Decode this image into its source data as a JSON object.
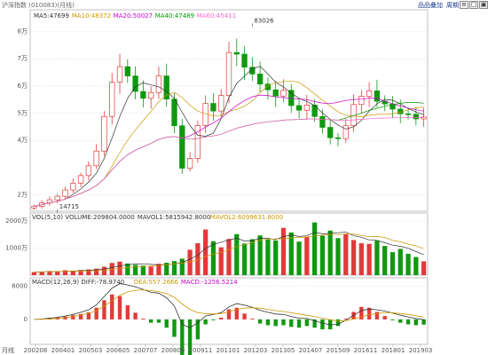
{
  "header": {
    "title": "沪深指数 (010083)(月线)",
    "btn_add": "品品叠加",
    "btn_cycle": "周期",
    "icon_a": "≡",
    "icon_b": "□",
    "icon_c": "▣"
  },
  "chart_data": [
    {
      "type": "candlestick",
      "panel": "price",
      "ma_legend": [
        {
          "label": "MA5:47699",
          "color": "#333333"
        },
        {
          "label": "MA10:48372",
          "color": "#cc9900"
        },
        {
          "label": "MA20:50027",
          "color": "#cc00cc"
        },
        {
          "label": "MA40:47489",
          "color": "#009900"
        },
        {
          "label": "MA60:45411",
          "color": "#ff66cc"
        }
      ],
      "ylim": [
        14000,
        88000
      ],
      "yticks": [
        {
          "v": 20000,
          "label": "2万"
        },
        {
          "v": 40000,
          "label": "4万"
        },
        {
          "v": 50000,
          "label": "5万"
        },
        {
          "v": 60000,
          "label": "6万"
        },
        {
          "v": 70000,
          "label": "7万"
        },
        {
          "v": 80000,
          "label": "8万"
        }
      ],
      "annotations": [
        {
          "label": "83026",
          "x": 28,
          "y": 83026
        },
        {
          "label": "14715",
          "x": 3,
          "y": 14715
        }
      ],
      "series_colors": {
        "up": "#e23a3a",
        "down": "#109910"
      },
      "x": [
        "200208",
        "200301",
        "200305",
        "200309",
        "200401",
        "200405",
        "200409",
        "200501",
        "200505",
        "200509",
        "200601",
        "200605",
        "200609",
        "200701",
        "200705",
        "200709",
        "200801",
        "200805",
        "200809",
        "200901",
        "200905",
        "200909",
        "201001",
        "201005",
        "201009",
        "201101",
        "201105",
        "201109",
        "201201",
        "201205",
        "201209",
        "201301",
        "201305",
        "201309",
        "201401",
        "201405",
        "201409",
        "201501",
        "201505",
        "201509",
        "201601",
        "201605",
        "201609",
        "201701",
        "201705",
        "201709",
        "201801",
        "201805",
        "201809",
        "201901",
        "201903"
      ],
      "close": [
        15800,
        17100,
        18200,
        19500,
        21800,
        24300,
        27100,
        30700,
        36100,
        48800,
        61400,
        67100,
        63700,
        58000,
        55500,
        57600,
        63700,
        55200,
        45400,
        29800,
        33400,
        45500,
        53600,
        50800,
        56500,
        72300,
        71700,
        66900,
        64400,
        60700,
        58600,
        56300,
        58400,
        52800,
        51100,
        53000,
        48800,
        44800,
        41000,
        40700,
        45400,
        53200,
        56200,
        58200,
        54400,
        53400,
        51500,
        49800,
        49600,
        47900,
        48600
      ],
      "ohlc_note": "monthly candles, values read from y axis"
    },
    {
      "type": "bar",
      "panel": "volume",
      "legend": [
        {
          "label": "VOL(5,10) VOLUME:209804.0000",
          "color": "#333333"
        },
        {
          "label": "MAVOL1:5815942.8000",
          "color": "#333333"
        },
        {
          "label": "MAVOL2:6099631.8000",
          "color": "#cc9900"
        }
      ],
      "ylim": [
        0,
        23000000
      ],
      "yticks": [
        {
          "v": 10000000,
          "label": "1000万"
        },
        {
          "v": 20000000,
          "label": "2000万"
        }
      ],
      "values": [
        1100000,
        1300000,
        1500000,
        1400000,
        1800000,
        1600000,
        1900000,
        2100000,
        2400000,
        3100000,
        4500000,
        5000000,
        4300000,
        3800000,
        3500000,
        3200000,
        4200000,
        4600000,
        5200000,
        6100000,
        9400000,
        11800000,
        16900000,
        12500000,
        10300000,
        13400000,
        15200000,
        11700000,
        13300000,
        14700000,
        13200000,
        12800000,
        17500000,
        15800000,
        12400000,
        14200000,
        19500000,
        14600000,
        16500000,
        13700000,
        15200000,
        13000000,
        11800000,
        11600000,
        12800000,
        10800000,
        8500000,
        9700000,
        7900000,
        6700000,
        5100000
      ]
    },
    {
      "type": "line",
      "panel": "macd",
      "legend": [
        {
          "label": "MACD(12,26,9) DIFF:-78.9740",
          "color": "#333333"
        },
        {
          "label": "DEA:557.2666",
          "color": "#cc9900"
        },
        {
          "label": "MACD:-1256.5214",
          "color": "#cc00cc"
        }
      ],
      "ylim": [
        -6000,
        10000
      ],
      "yticks": [
        {
          "v": 0,
          "label": "0"
        },
        {
          "v": 8000,
          "label": "8000"
        }
      ],
      "diff": [
        0,
        100,
        300,
        500,
        800,
        1200,
        1700,
        2300,
        3500,
        5500,
        7500,
        8600,
        8300,
        7800,
        7200,
        6500,
        6300,
        5200,
        3200,
        -1200,
        -2000,
        -800,
        800,
        1200,
        1600,
        3000,
        3800,
        3400,
        2900,
        2200,
        1700,
        1300,
        1200,
        700,
        300,
        200,
        -300,
        -900,
        -1300,
        -1200,
        -200,
        1000,
        2100,
        2500,
        2300,
        2000,
        1500,
        1000,
        600,
        200,
        -79
      ],
      "dea": [
        0,
        40,
        120,
        260,
        450,
        700,
        1050,
        1450,
        2100,
        3200,
        4500,
        5800,
        6600,
        7000,
        7100,
        6900,
        6700,
        6200,
        5300,
        3700,
        2400,
        1600,
        1400,
        1300,
        1400,
        1800,
        2400,
        2700,
        2800,
        2700,
        2400,
        2100,
        1900,
        1600,
        1300,
        1000,
        700,
        300,
        -100,
        -400,
        -300,
        100,
        600,
        1100,
        1400,
        1600,
        1600,
        1400,
        1200,
        900,
        557
      ],
      "macd": [
        0,
        120,
        360,
        480,
        700,
        1000,
        1300,
        1700,
        2800,
        4600,
        6000,
        5600,
        3400,
        1600,
        200,
        -800,
        -800,
        -2000,
        -4200,
        -9800,
        -8800,
        -4800,
        -1200,
        -200,
        400,
        2400,
        2800,
        1400,
        200,
        -1000,
        -1400,
        -1600,
        -1400,
        -1800,
        -2000,
        -1600,
        -2000,
        -2400,
        -2400,
        -1600,
        200,
        1800,
        3000,
        2800,
        1800,
        800,
        -200,
        -800,
        -1200,
        -1400,
        -1257
      ]
    }
  ],
  "x_axis": {
    "start_label": "月线",
    "ticks": [
      "200208",
      "200401",
      "200503",
      "200605",
      "200707",
      "200809",
      "200911",
      "201101",
      "201203",
      "201305",
      "201407",
      "201509",
      "201611",
      "201801",
      "201903"
    ]
  }
}
